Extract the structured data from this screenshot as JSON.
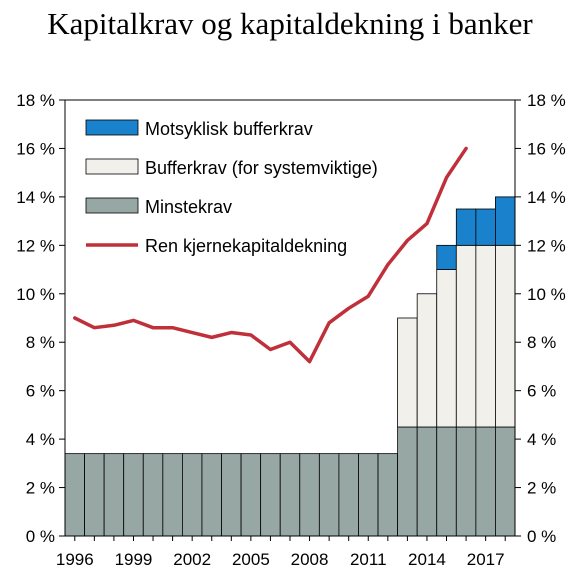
{
  "chart_data": {
    "type": "bar",
    "title": "Kapitalkrav og kapitaldekning i banker",
    "xlabel": "",
    "ylabel": "",
    "ylim": [
      0,
      18
    ],
    "y_ticks": [
      "0 %",
      "2 %",
      "4 %",
      "6 %",
      "8 %",
      "10 %",
      "12 %",
      "14 %",
      "16 %",
      "18 %"
    ],
    "y_tick_values": [
      0,
      2,
      4,
      6,
      8,
      10,
      12,
      14,
      16,
      18
    ],
    "x_tick_labels": [
      "1996",
      "1999",
      "2002",
      "2005",
      "2008",
      "2011",
      "2014",
      "2017"
    ],
    "categories": [
      "1996",
      "1997",
      "1998",
      "1999",
      "2000",
      "2001",
      "2002",
      "2003",
      "2004",
      "2005",
      "2006",
      "2007",
      "2008",
      "2009",
      "2010",
      "2011",
      "2012",
      "2013",
      "2014",
      "2015",
      "2016",
      "2017",
      "2018"
    ],
    "stacked": true,
    "grid": false,
    "legend_position": "top-left",
    "series": [
      {
        "name": "Minstekrav",
        "kind": "bar",
        "color": "#97a7a4",
        "values": [
          3.4,
          3.4,
          3.4,
          3.4,
          3.4,
          3.4,
          3.4,
          3.4,
          3.4,
          3.4,
          3.4,
          3.4,
          3.4,
          3.4,
          3.4,
          3.4,
          3.4,
          4.5,
          4.5,
          4.5,
          4.5,
          4.5,
          4.5
        ]
      },
      {
        "name": "Bufferkrav (for systemviktige)",
        "kind": "bar",
        "color": "#f2f0ea",
        "values": [
          0,
          0,
          0,
          0,
          0,
          0,
          0,
          0,
          0,
          0,
          0,
          0,
          0,
          0,
          0,
          0,
          0,
          4.5,
          5.5,
          6.5,
          7.5,
          7.5,
          7.5
        ]
      },
      {
        "name": "Motsyklisk bufferkrav",
        "kind": "bar",
        "color": "#1a82cc",
        "values": [
          0,
          0,
          0,
          0,
          0,
          0,
          0,
          0,
          0,
          0,
          0,
          0,
          0,
          0,
          0,
          0,
          0,
          0,
          0,
          1.0,
          1.5,
          1.5,
          2.0
        ]
      },
      {
        "name": "Ren kjernekapitaldekning",
        "kind": "line",
        "color": "#c0303a",
        "x": [
          1996,
          1997,
          1998,
          1999,
          2000,
          2001,
          2002,
          2003,
          2004,
          2005,
          2006,
          2007,
          2008,
          2009,
          2010,
          2011,
          2012,
          2013,
          2014,
          2015,
          2016
        ],
        "values": [
          9.0,
          8.6,
          8.7,
          8.9,
          8.6,
          8.6,
          8.4,
          8.2,
          8.4,
          8.3,
          7.7,
          8.0,
          7.2,
          8.8,
          9.4,
          9.9,
          11.2,
          12.2,
          12.9,
          14.8,
          16.0
        ]
      }
    ],
    "legend_order": [
      "Motsyklisk bufferkrav",
      "Bufferkrav (for systemviktige)",
      "Minstekrav",
      "Ren kjernekapitaldekning"
    ]
  }
}
